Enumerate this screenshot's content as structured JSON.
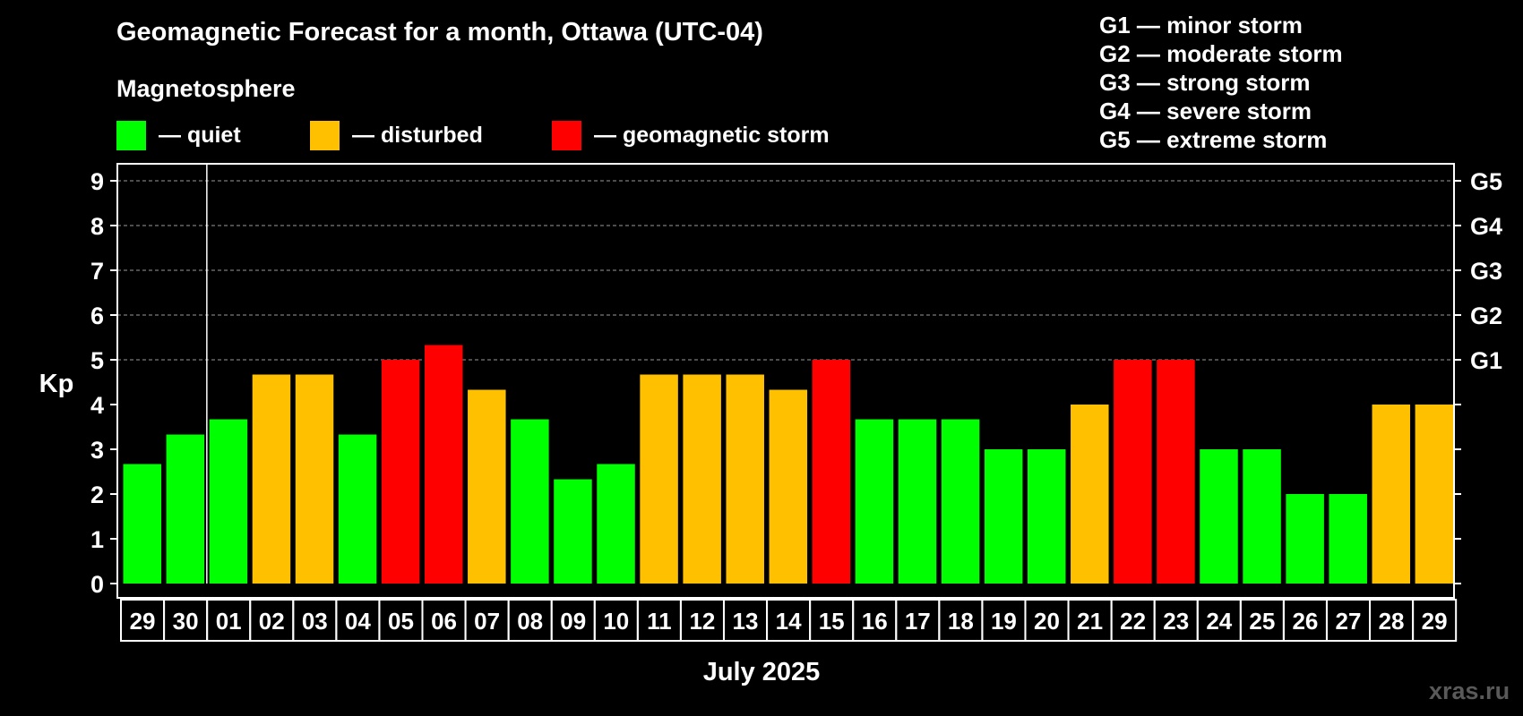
{
  "chart_data": {
    "type": "bar",
    "title": "Geomagnetic Forecast for a month, Ottawa (UTC-04)",
    "subtitle": "Magnetosphere",
    "xlabel": "July 2025",
    "ylabel": "Kp",
    "ylim": [
      0,
      9
    ],
    "yticks": [
      "0",
      "1",
      "2",
      "3",
      "4",
      "5",
      "6",
      "7",
      "8",
      "9"
    ],
    "right_ticks": [
      {
        "kp": 5,
        "label": "G1"
      },
      {
        "kp": 6,
        "label": "G2"
      },
      {
        "kp": 7,
        "label": "G3"
      },
      {
        "kp": 8,
        "label": "G4"
      },
      {
        "kp": 9,
        "label": "G5"
      }
    ],
    "grid": true,
    "categories": [
      "29",
      "30",
      "01",
      "02",
      "03",
      "04",
      "05",
      "06",
      "07",
      "08",
      "09",
      "10",
      "11",
      "12",
      "13",
      "14",
      "15",
      "16",
      "17",
      "18",
      "19",
      "20",
      "21",
      "22",
      "23",
      "24",
      "25",
      "26",
      "27",
      "28",
      "29"
    ],
    "values": [
      2.67,
      3.33,
      3.67,
      4.67,
      4.67,
      3.33,
      5.0,
      5.33,
      4.33,
      3.67,
      2.33,
      2.67,
      4.67,
      4.67,
      4.67,
      4.33,
      5.0,
      3.67,
      3.67,
      3.67,
      3.0,
      3.0,
      4.0,
      5.0,
      5.0,
      3.0,
      3.0,
      2.0,
      2.0,
      4.0,
      4.0
    ],
    "levels": [
      "quiet",
      "quiet",
      "quiet",
      "disturbed",
      "disturbed",
      "quiet",
      "storm",
      "storm",
      "disturbed",
      "quiet",
      "quiet",
      "quiet",
      "disturbed",
      "disturbed",
      "disturbed",
      "disturbed",
      "storm",
      "quiet",
      "quiet",
      "quiet",
      "quiet",
      "quiet",
      "disturbed",
      "storm",
      "storm",
      "quiet",
      "quiet",
      "quiet",
      "quiet",
      "disturbed",
      "disturbed"
    ],
    "month_divider_after_index": 1,
    "legend": [
      {
        "key": "quiet",
        "label": "— quiet",
        "color": "#00ff00"
      },
      {
        "key": "disturbed",
        "label": "— disturbed",
        "color": "#ffc000"
      },
      {
        "key": "storm",
        "label": "— geomagnetic storm",
        "color": "#ff0000"
      }
    ],
    "storm_scale": [
      "G1 — minor storm",
      "G2 — moderate storm",
      "G3 — strong storm",
      "G4 — severe storm",
      "G5 — extreme storm"
    ]
  },
  "watermark": "xras.ru"
}
